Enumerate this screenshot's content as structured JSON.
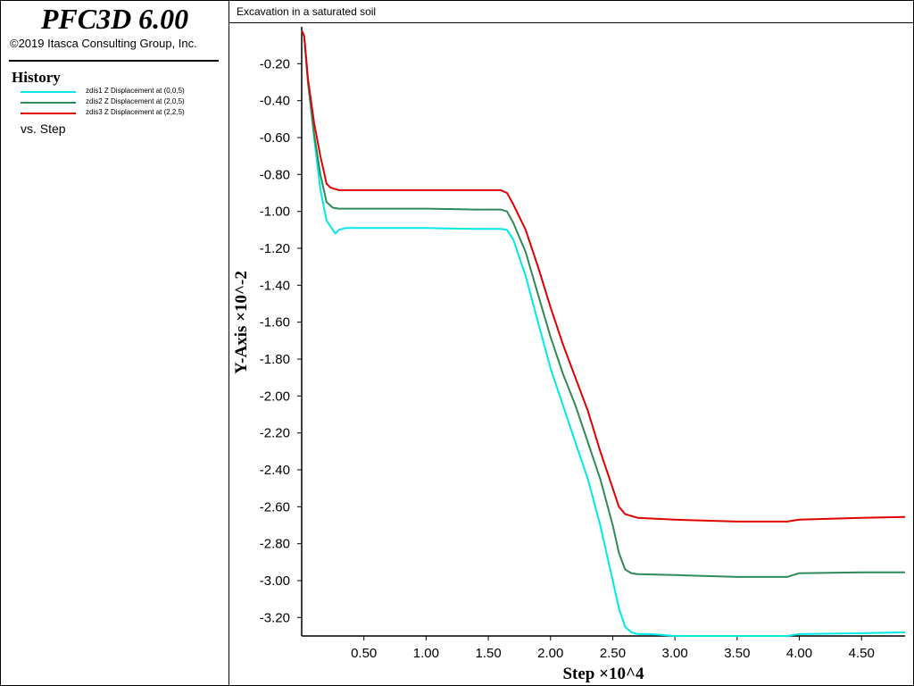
{
  "app": {
    "name": "PFC3D 6.00",
    "copyright": "©2019 Itasca Consulting Group, Inc."
  },
  "legend": {
    "heading": "History",
    "vs_label": "vs. Step",
    "items": [
      {
        "label": "zdis1 Z Displacement at (0,0,5)",
        "color": "#00e8e8"
      },
      {
        "label": "zdis2 Z Displacement at (2,0,5)",
        "color": "#2e8b57"
      },
      {
        "label": "zdis3 Z Displacement at (2,2,5)",
        "color": "#e00000"
      }
    ]
  },
  "plot": {
    "title": "Excavation in a saturated soil"
  },
  "chart_data": {
    "type": "line",
    "title": "Excavation in a saturated soil",
    "xlabel": "Step ×10^4",
    "ylabel": "Y-Axis ×10^-2",
    "xlim": [
      0,
      4.85
    ],
    "ylim": [
      -3.3,
      0
    ],
    "x_ticks": [
      "0.50",
      "1.00",
      "1.50",
      "2.00",
      "2.50",
      "3.00",
      "3.50",
      "4.00",
      "4.50"
    ],
    "y_ticks": [
      "-0.20",
      "-0.40",
      "-0.60",
      "-0.80",
      "-1.00",
      "-1.20",
      "-1.40",
      "-1.60",
      "-1.80",
      "-2.00",
      "-2.20",
      "-2.40",
      "-2.60",
      "-2.80",
      "-3.00",
      "-3.20"
    ],
    "grid": false,
    "series": [
      {
        "name": "zdis1 Z Displacement at (0,0,5)",
        "color": "#00e8e8",
        "x": [
          0.0,
          0.02,
          0.05,
          0.1,
          0.15,
          0.2,
          0.25,
          0.27,
          0.3,
          0.35,
          0.4,
          0.6,
          1.0,
          1.4,
          1.6,
          1.65,
          1.7,
          1.8,
          1.9,
          2.0,
          2.1,
          2.2,
          2.3,
          2.4,
          2.5,
          2.55,
          2.6,
          2.65,
          2.7,
          2.8,
          3.0,
          3.5,
          3.9,
          4.0,
          4.5,
          4.85
        ],
        "y": [
          -0.02,
          -0.05,
          -0.3,
          -0.6,
          -0.88,
          -1.05,
          -1.1,
          -1.12,
          -1.1,
          -1.09,
          -1.09,
          -1.09,
          -1.09,
          -1.095,
          -1.095,
          -1.1,
          -1.15,
          -1.35,
          -1.6,
          -1.85,
          -2.05,
          -2.25,
          -2.45,
          -2.7,
          -3.0,
          -3.15,
          -3.25,
          -3.28,
          -3.29,
          -3.29,
          -3.3,
          -3.3,
          -3.3,
          -3.29,
          -3.285,
          -3.28
        ]
      },
      {
        "name": "zdis2 Z Displacement at (2,0,5)",
        "color": "#2e8b57",
        "x": [
          0.0,
          0.02,
          0.05,
          0.1,
          0.15,
          0.2,
          0.25,
          0.3,
          0.4,
          0.6,
          1.0,
          1.4,
          1.6,
          1.65,
          1.7,
          1.8,
          1.9,
          2.0,
          2.1,
          2.2,
          2.3,
          2.4,
          2.5,
          2.55,
          2.6,
          2.65,
          2.7,
          3.0,
          3.5,
          3.9,
          4.0,
          4.5,
          4.85
        ],
        "y": [
          -0.02,
          -0.05,
          -0.3,
          -0.58,
          -0.8,
          -0.95,
          -0.98,
          -0.985,
          -0.985,
          -0.985,
          -0.985,
          -0.99,
          -0.99,
          -1.0,
          -1.06,
          -1.22,
          -1.45,
          -1.68,
          -1.88,
          -2.05,
          -2.25,
          -2.45,
          -2.7,
          -2.85,
          -2.94,
          -2.96,
          -2.965,
          -2.97,
          -2.98,
          -2.98,
          -2.96,
          -2.955,
          -2.955
        ]
      },
      {
        "name": "zdis3 Z Displacement at (2,2,5)",
        "color": "#e00000",
        "x": [
          0.0,
          0.02,
          0.05,
          0.1,
          0.15,
          0.2,
          0.23,
          0.25,
          0.3,
          0.4,
          0.6,
          1.0,
          1.4,
          1.6,
          1.65,
          1.7,
          1.8,
          1.9,
          2.0,
          2.1,
          2.2,
          2.3,
          2.4,
          2.5,
          2.55,
          2.6,
          2.65,
          2.7,
          3.0,
          3.5,
          3.9,
          4.0,
          4.5,
          4.85
        ],
        "y": [
          -0.02,
          -0.05,
          -0.28,
          -0.52,
          -0.7,
          -0.85,
          -0.87,
          -0.875,
          -0.885,
          -0.885,
          -0.885,
          -0.885,
          -0.885,
          -0.885,
          -0.9,
          -0.96,
          -1.1,
          -1.3,
          -1.52,
          -1.72,
          -1.9,
          -2.08,
          -2.3,
          -2.5,
          -2.6,
          -2.64,
          -2.65,
          -2.66,
          -2.67,
          -2.68,
          -2.68,
          -2.67,
          -2.66,
          -2.655
        ]
      }
    ]
  }
}
